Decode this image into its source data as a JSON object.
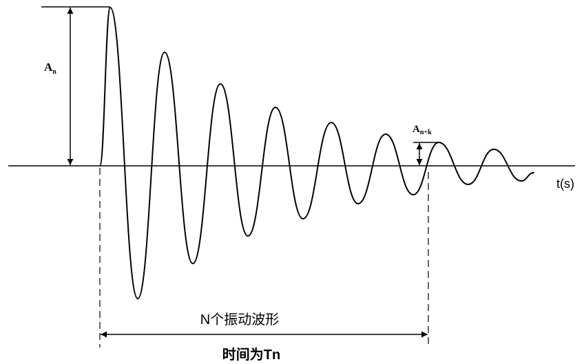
{
  "labels": {
    "a_n": {
      "main": "A",
      "sub": "n"
    },
    "a_n_plus_k": {
      "main": "A",
      "sub": "n+k"
    },
    "time_axis": "t(s)",
    "n_waves": "N个振动波形",
    "time_tn": "时间为Tn"
  },
  "colors": {
    "line": "#000000",
    "background": "#ffffff"
  }
}
